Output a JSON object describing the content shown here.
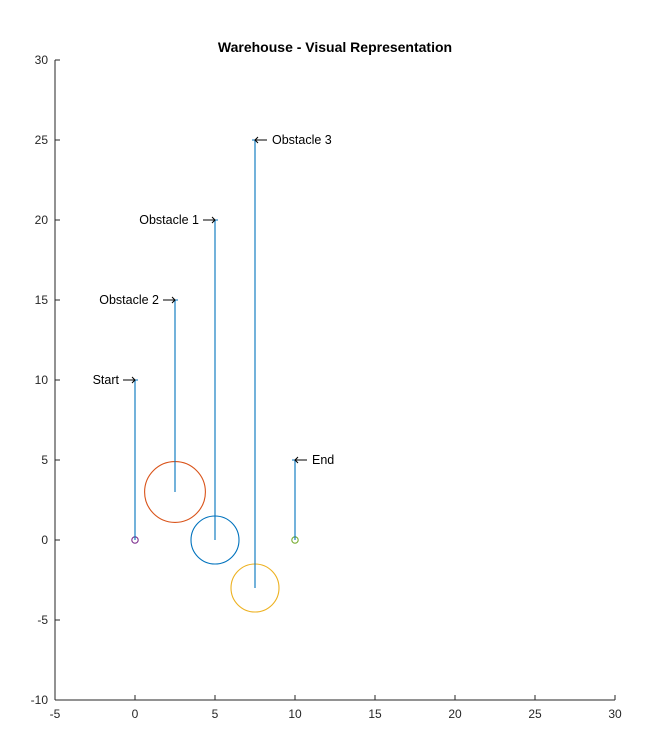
{
  "chart_data": {
    "type": "scatter",
    "title": "Warehouse - Visual Representation",
    "xlabel": "",
    "ylabel": "",
    "xlim": [
      -5,
      30
    ],
    "ylim": [
      -10,
      30
    ],
    "xticks": [
      -5,
      0,
      5,
      10,
      15,
      20,
      25,
      30
    ],
    "yticks": [
      -10,
      -5,
      0,
      5,
      10,
      15,
      20,
      25,
      30
    ],
    "xtick_labels": [
      "-5",
      "0",
      "5",
      "10",
      "15",
      "20",
      "25",
      "30"
    ],
    "ytick_labels": [
      "-10",
      "-5",
      "0",
      "5",
      "10",
      "15",
      "20",
      "25",
      "30"
    ],
    "grid": false,
    "legend": "none",
    "circles": [
      {
        "cx": 2.5,
        "cy": 3,
        "r": 1.9,
        "color": "#D95319"
      },
      {
        "cx": 5,
        "cy": 0,
        "r": 1.5,
        "color": "#0072BD"
      },
      {
        "cx": 7.5,
        "cy": -3,
        "r": 1.5,
        "color": "#EDB120"
      },
      {
        "cx": 0,
        "cy": 0,
        "r": 0.2,
        "color": "#7E2F8E"
      },
      {
        "cx": 10,
        "cy": 0,
        "r": 0.2,
        "color": "#77AC30"
      }
    ],
    "annotations": [
      {
        "text": "Start",
        "x": 0,
        "y_from": 0,
        "y_to": 10,
        "side": "left"
      },
      {
        "text": "Obstacle 2",
        "x": 2.5,
        "y_from": 3,
        "y_to": 15,
        "side": "left"
      },
      {
        "text": "Obstacle 1",
        "x": 5,
        "y_from": 0,
        "y_to": 20,
        "side": "left"
      },
      {
        "text": "Obstacle 3",
        "x": 7.5,
        "y_from": -3,
        "y_to": 25,
        "side": "right"
      },
      {
        "text": "End",
        "x": 10,
        "y_from": 0,
        "y_to": 5,
        "side": "right"
      }
    ],
    "annotation_color": "#0072BD"
  }
}
